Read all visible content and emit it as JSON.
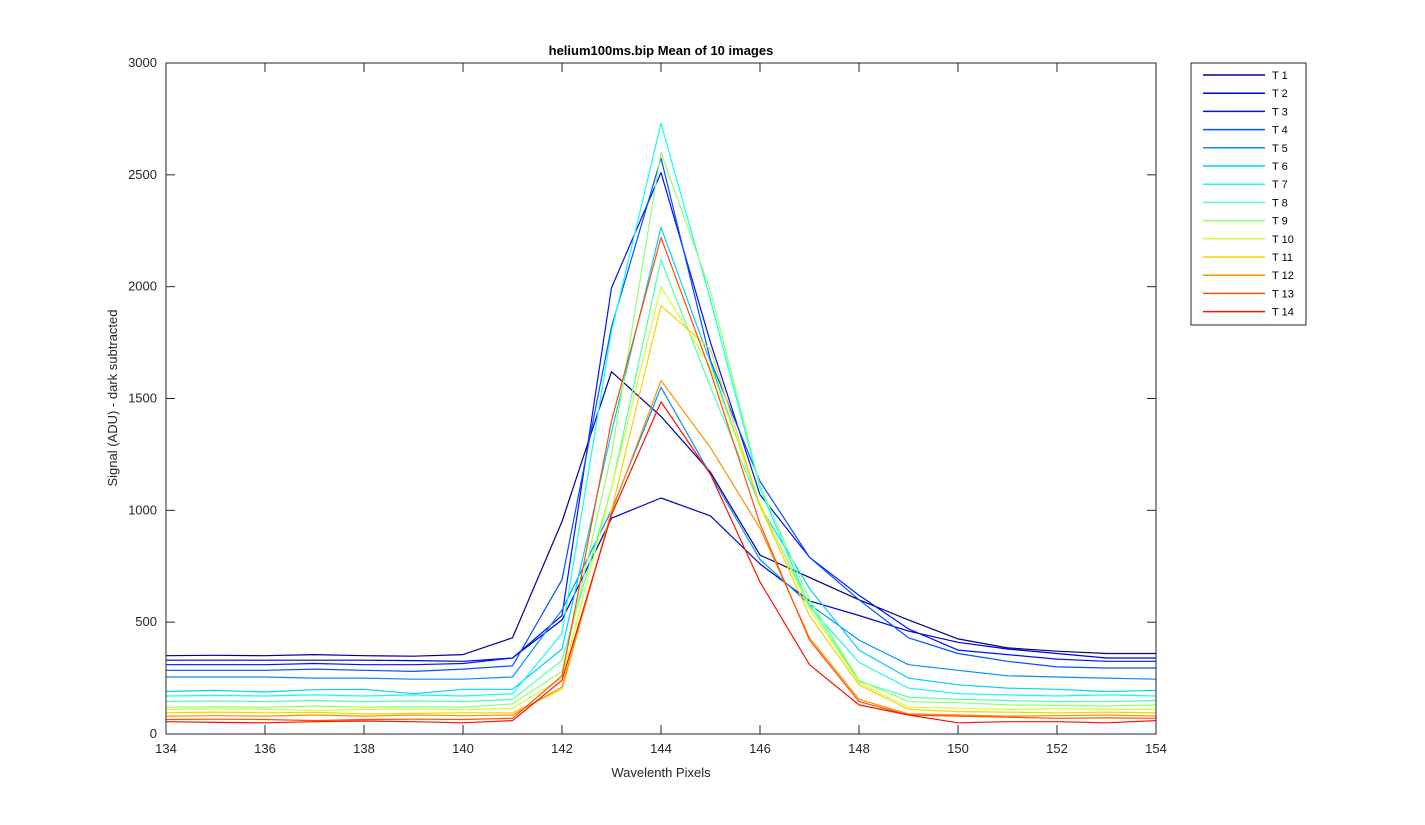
{
  "chart_data": {
    "type": "line",
    "title": "helium100ms.bip  Mean of 10 images",
    "xlabel": "Wavelenth Pixels",
    "ylabel": "Signal (ADU) - dark subtracted",
    "xlim": [
      134,
      154
    ],
    "ylim": [
      0,
      3000
    ],
    "xticks": [
      "134",
      "136",
      "138",
      "140",
      "142",
      "144",
      "146",
      "148",
      "150",
      "152",
      "154"
    ],
    "yticks": [
      "0",
      "500",
      "1000",
      "1500",
      "2000",
      "2500",
      "3000"
    ],
    "grid": false,
    "legend_position": "outside-top-right",
    "x": [
      134,
      135,
      136,
      137,
      138,
      139,
      140,
      141,
      142,
      143,
      144,
      145,
      146,
      147,
      148,
      149,
      150,
      151,
      152,
      153,
      154
    ],
    "series": [
      {
        "name": "T 1",
        "color": "#00008F",
        "values": [
          350,
          352,
          350,
          355,
          350,
          348,
          355,
          430,
          950,
          1620,
          1420,
          1170,
          800,
          700,
          600,
          510,
          425,
          385,
          370,
          360,
          360
        ]
      },
      {
        "name": "T 2",
        "color": "#0000CF",
        "values": [
          330,
          330,
          330,
          330,
          330,
          328,
          325,
          340,
          510,
          965,
          1055,
          975,
          760,
          595,
          530,
          460,
          410,
          380,
          360,
          340,
          340
        ]
      },
      {
        "name": "T 3",
        "color": "#0010FF",
        "values": [
          310,
          310,
          310,
          315,
          310,
          310,
          315,
          340,
          530,
          1995,
          2510,
          1750,
          1070,
          790,
          620,
          470,
          375,
          355,
          335,
          325,
          325
        ]
      },
      {
        "name": "T 4",
        "color": "#0050FF",
        "values": [
          285,
          285,
          285,
          290,
          285,
          280,
          290,
          305,
          690,
          1820,
          2575,
          1670,
          1130,
          790,
          600,
          430,
          360,
          325,
          300,
          295,
          295
        ]
      },
      {
        "name": "T 5",
        "color": "#0090FF",
        "values": [
          255,
          255,
          255,
          250,
          250,
          245,
          245,
          255,
          555,
          1000,
          1550,
          1160,
          780,
          580,
          420,
          310,
          285,
          260,
          255,
          250,
          245
        ]
      },
      {
        "name": "T 6",
        "color": "#00D0FF",
        "values": [
          190,
          195,
          188,
          198,
          200,
          180,
          200,
          200,
          380,
          1350,
          2265,
          1660,
          1020,
          650,
          375,
          250,
          220,
          205,
          200,
          190,
          195
        ]
      },
      {
        "name": "T 7",
        "color": "#10FFEF",
        "values": [
          170,
          172,
          170,
          175,
          170,
          175,
          170,
          180,
          450,
          1800,
          2730,
          1940,
          1100,
          570,
          320,
          205,
          180,
          175,
          170,
          175,
          170
        ]
      },
      {
        "name": "T 8",
        "color": "#50FFAF",
        "values": [
          145,
          148,
          145,
          150,
          145,
          148,
          145,
          155,
          330,
          1100,
          2120,
          1550,
          1020,
          580,
          235,
          165,
          155,
          150,
          145,
          145,
          150
        ]
      },
      {
        "name": "T 9",
        "color": "#90FF6F",
        "values": [
          120,
          122,
          120,
          125,
          120,
          122,
          120,
          135,
          280,
          1250,
          2600,
          1980,
          1110,
          600,
          240,
          145,
          140,
          130,
          128,
          125,
          130
        ]
      },
      {
        "name": "T 10",
        "color": "#CFFF30",
        "values": [
          110,
          112,
          110,
          105,
          110,
          112,
          108,
          115,
          250,
          1100,
          2000,
          1640,
          1030,
          560,
          230,
          120,
          115,
          110,
          112,
          110,
          110
        ]
      },
      {
        "name": "T 11",
        "color": "#FFCF00",
        "values": [
          95,
          98,
          95,
          97,
          90,
          92,
          95,
          95,
          200,
          1000,
          1915,
          1720,
          1020,
          530,
          220,
          110,
          100,
          98,
          95,
          98,
          95
        ]
      },
      {
        "name": "T 12",
        "color": "#FF8F00",
        "values": [
          80,
          82,
          80,
          85,
          80,
          85,
          82,
          85,
          210,
          990,
          1580,
          1280,
          920,
          430,
          155,
          90,
          85,
          80,
          82,
          85,
          80
        ]
      },
      {
        "name": "T 13",
        "color": "#FF5000",
        "values": [
          65,
          66,
          65,
          60,
          65,
          66,
          65,
          70,
          260,
          1400,
          2220,
          1620,
          940,
          420,
          145,
          85,
          80,
          75,
          70,
          72,
          70
        ]
      },
      {
        "name": "T 14",
        "color": "#FF1000",
        "values": [
          55,
          52,
          50,
          55,
          58,
          55,
          50,
          60,
          240,
          980,
          1485,
          1160,
          680,
          310,
          130,
          85,
          50,
          55,
          55,
          50,
          60
        ]
      }
    ]
  }
}
